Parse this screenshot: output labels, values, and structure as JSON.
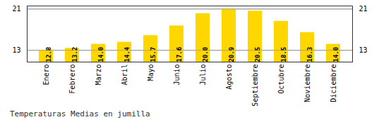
{
  "chart_data": {
    "type": "bar",
    "title": "Temperaturas Medias en jumilla",
    "categories": [
      "Enero",
      "Febrero",
      "Marzo",
      "Abril",
      "Mayo",
      "Junio",
      "Julio",
      "Agosto",
      "Septiembre",
      "Octubre",
      "Noviembre",
      "Diciembre"
    ],
    "values": [
      12.8,
      13.2,
      14.0,
      14.4,
      15.7,
      17.6,
      20.0,
      20.9,
      20.5,
      18.5,
      16.3,
      14.0
    ],
    "value_labels": [
      "12.8",
      "13.2",
      "14.0",
      "14.4",
      "15.7",
      "17.6",
      "20.0",
      "20.9",
      "20.5",
      "18.5",
      "16.3",
      "14.0"
    ],
    "color": "#FFD700",
    "ylim": [
      10.5,
      21.5
    ],
    "yticks": [
      12.8,
      20.9
    ],
    "grid": true,
    "data_labels": true
  }
}
